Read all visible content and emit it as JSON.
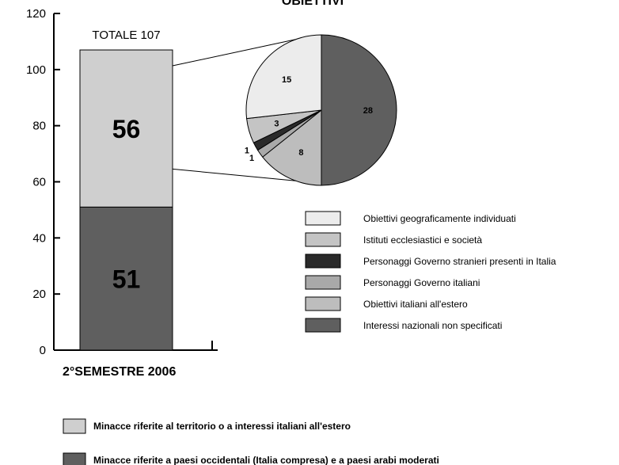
{
  "title": "OBIETTIVI",
  "colors": {
    "light_gray": "#cfcfcf",
    "dark_gray": "#5f5f5f",
    "very_light": "#ececec",
    "mid_gray": "#b4b4b4",
    "black_slice": "#2a2a2a",
    "axis": "#000000"
  },
  "chart_data": [
    {
      "type": "bar",
      "stacked": true,
      "title": "OBIETTIVI",
      "categories": [
        "2°SEMESTRE 2006"
      ],
      "total_label": "TOTALE 107",
      "ylim": [
        0,
        120
      ],
      "yticks": [
        0,
        20,
        40,
        60,
        80,
        100,
        120
      ],
      "grid": false,
      "series": [
        {
          "name": "Minacce riferite a paesi occidentali (Italia compresa) e a paesi arabi moderati",
          "values": [
            51
          ],
          "color": "#5f5f5f"
        },
        {
          "name": "Minacce riferite al territorio o a interessi italiani all'estero",
          "values": [
            56
          ],
          "color": "#cfcfcf"
        }
      ],
      "legend_position": "bottom"
    },
    {
      "type": "pie",
      "breakdown_of": "Minacce riferite al territorio o a interessi italiani all'estero",
      "slices": [
        {
          "name": "Interessi nazionali non specificati",
          "value": 28,
          "color": "#5f5f5f"
        },
        {
          "name": "Obiettivi italiani all'estero",
          "value": 8,
          "color": "#bdbdbd"
        },
        {
          "name": "Personaggi Governo italiani",
          "value": 1,
          "color": "#a9a9a9"
        },
        {
          "name": "Personaggi Governo stranieri presenti in Italia",
          "value": 1,
          "color": "#2a2a2a"
        },
        {
          "name": "Istituti ecclesiastici e società",
          "value": 3,
          "color": "#c4c4c4"
        },
        {
          "name": "Obiettivi geograficamente individuati",
          "value": 15,
          "color": "#ececec"
        }
      ],
      "legend_order": [
        "Obiettivi geograficamente individuati",
        "Istituti ecclesiastici e società",
        "Personaggi Governo stranieri presenti in Italia",
        "Personaggi Governo italiani",
        "Obiettivi italiani all'estero",
        "Interessi nazionali non specificati"
      ],
      "legend_position": "right"
    }
  ]
}
